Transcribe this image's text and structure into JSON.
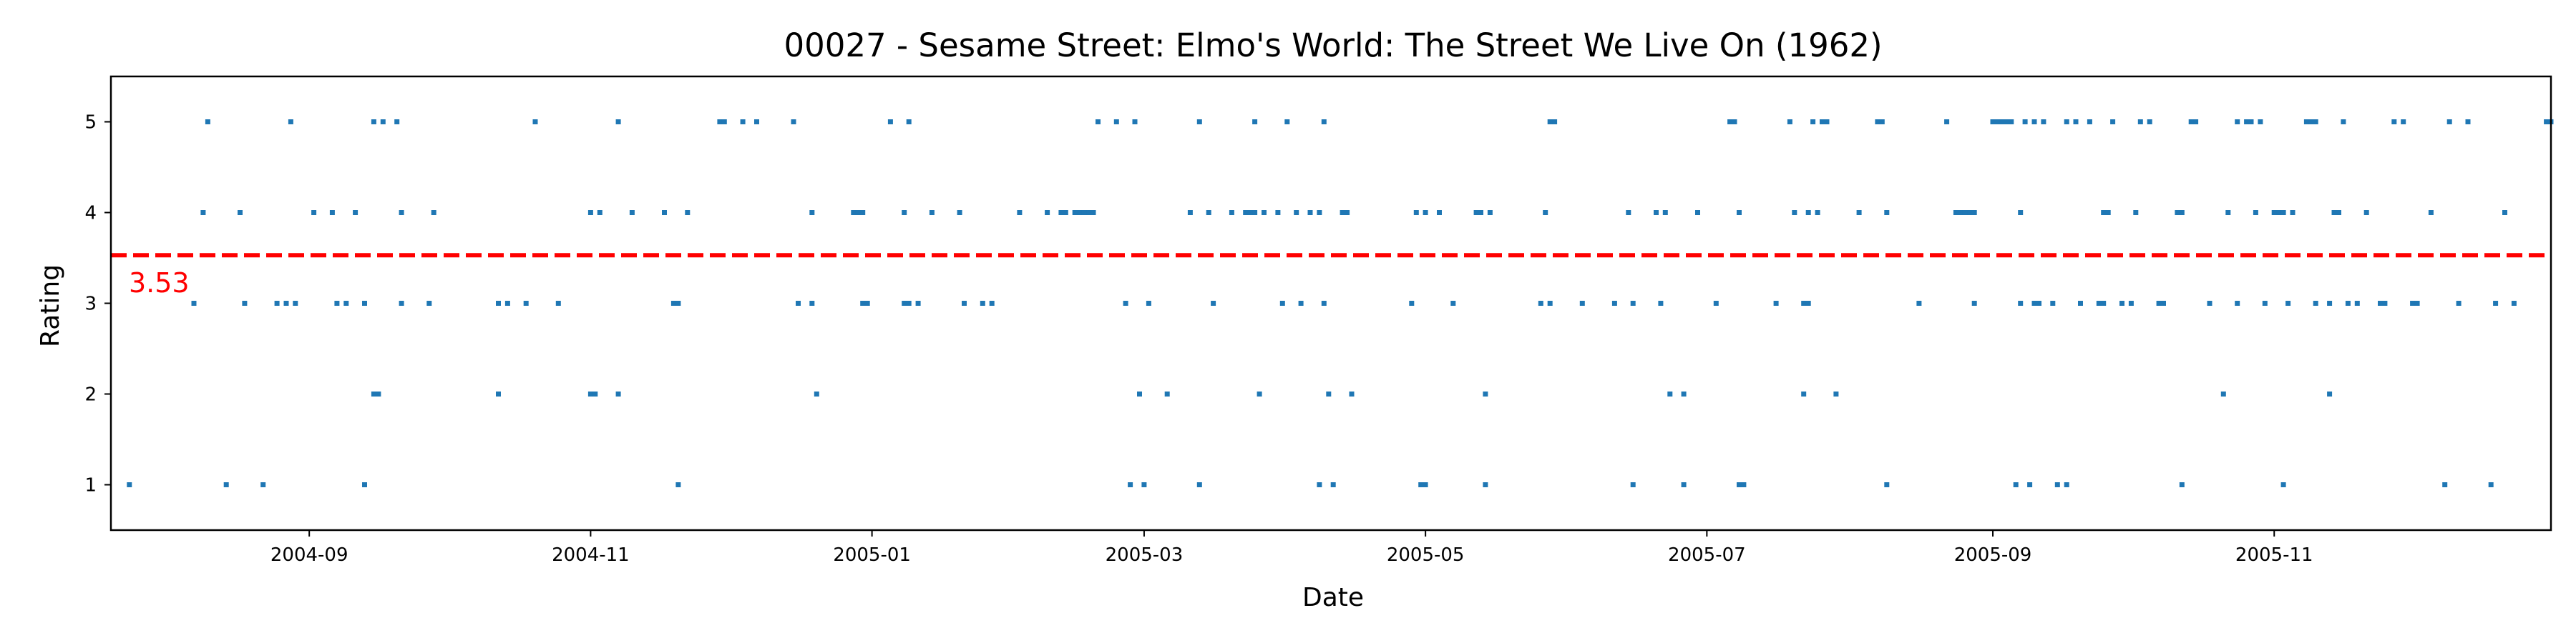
{
  "chart_data": {
    "type": "scatter",
    "title": "00027 - Sesame Street: Elmo's World: The Street We Live On (1962)",
    "xlabel": "Date",
    "ylabel": "Rating",
    "x_type": "date",
    "xlim": [
      "2004-07-20",
      "2005-12-31"
    ],
    "ylim": [
      0.5,
      5.5
    ],
    "x_ticks": [
      "2004-09",
      "2004-11",
      "2005-01",
      "2005-03",
      "2005-05",
      "2005-07",
      "2005-09",
      "2005-11"
    ],
    "y_ticks": [
      1,
      2,
      3,
      4,
      5
    ],
    "grid": false,
    "mean_line": {
      "value": 3.53,
      "label": "3.53",
      "color": "#ff0000",
      "style": "dashed"
    },
    "marker_color": "#1f77b4",
    "series": [
      {
        "points": [
          [
            "2004-07-24",
            1
          ],
          [
            "2004-08-07",
            3
          ],
          [
            "2004-08-09",
            4
          ],
          [
            "2004-08-10",
            5
          ],
          [
            "2004-08-14",
            1
          ],
          [
            "2004-08-17",
            4
          ],
          [
            "2004-08-18",
            3
          ],
          [
            "2004-08-22",
            1
          ],
          [
            "2004-08-25",
            3
          ],
          [
            "2004-08-27",
            3
          ],
          [
            "2004-08-28",
            5
          ],
          [
            "2004-08-29",
            3
          ],
          [
            "2004-09-02",
            4
          ],
          [
            "2004-09-06",
            4
          ],
          [
            "2004-09-07",
            3
          ],
          [
            "2004-09-09",
            3
          ],
          [
            "2004-09-11",
            4
          ],
          [
            "2004-09-13",
            3
          ],
          [
            "2004-09-13",
            1
          ],
          [
            "2004-09-15",
            5
          ],
          [
            "2004-09-15",
            2
          ],
          [
            "2004-09-16",
            2
          ],
          [
            "2004-09-17",
            5
          ],
          [
            "2004-09-20",
            5
          ],
          [
            "2004-09-21",
            4
          ],
          [
            "2004-09-21",
            3
          ],
          [
            "2004-09-27",
            3
          ],
          [
            "2004-09-28",
            4
          ],
          [
            "2004-10-12",
            3
          ],
          [
            "2004-10-12",
            2
          ],
          [
            "2004-10-14",
            3
          ],
          [
            "2004-10-18",
            3
          ],
          [
            "2004-10-20",
            5
          ],
          [
            "2004-10-25",
            3
          ],
          [
            "2005-11-01",
            4
          ],
          [
            "2004-11-01",
            4
          ],
          [
            "2004-11-01",
            2
          ],
          [
            "2004-11-02",
            2
          ],
          [
            "2004-11-03",
            4
          ],
          [
            "2004-11-07",
            5
          ],
          [
            "2004-11-07",
            2
          ],
          [
            "2004-11-10",
            4
          ],
          [
            "2004-11-17",
            4
          ],
          [
            "2004-11-19",
            3
          ],
          [
            "2004-11-20",
            3
          ],
          [
            "2004-11-20",
            1
          ],
          [
            "2004-11-22",
            4
          ],
          [
            "2004-11-29",
            5
          ],
          [
            "2004-11-30",
            5
          ],
          [
            "2004-12-04",
            5
          ],
          [
            "2004-12-07",
            5
          ],
          [
            "2004-12-15",
            5
          ],
          [
            "2004-12-16",
            3
          ],
          [
            "2004-12-19",
            4
          ],
          [
            "2004-12-19",
            3
          ],
          [
            "2004-12-20",
            2
          ],
          [
            "2004-12-28",
            4
          ],
          [
            "2004-12-29",
            4
          ],
          [
            "2004-12-30",
            4
          ],
          [
            "2004-12-30",
            3
          ],
          [
            "2004-12-31",
            3
          ],
          [
            "2005-01-05",
            5
          ],
          [
            "2005-01-08",
            4
          ],
          [
            "2005-01-08",
            3
          ],
          [
            "2005-01-09",
            3
          ],
          [
            "2005-01-09",
            5
          ],
          [
            "2005-01-11",
            3
          ],
          [
            "2005-01-14",
            4
          ],
          [
            "2005-01-20",
            4
          ],
          [
            "2005-01-21",
            3
          ],
          [
            "2005-01-25",
            3
          ],
          [
            "2005-01-27",
            3
          ],
          [
            "2005-02-02",
            4
          ],
          [
            "2005-02-08",
            4
          ],
          [
            "2005-02-11",
            4
          ],
          [
            "2005-02-12",
            4
          ],
          [
            "2005-02-14",
            4
          ],
          [
            "2005-02-15",
            4
          ],
          [
            "2005-02-16",
            4
          ],
          [
            "2005-02-17",
            4
          ],
          [
            "2005-02-18",
            4
          ],
          [
            "2005-02-19",
            5
          ],
          [
            "2005-02-23",
            5
          ],
          [
            "2005-02-25",
            3
          ],
          [
            "2005-02-26",
            1
          ],
          [
            "2005-02-27",
            5
          ],
          [
            "2005-02-28",
            2
          ],
          [
            "2005-03-01",
            1
          ],
          [
            "2005-03-02",
            3
          ],
          [
            "2005-03-06",
            2
          ],
          [
            "2005-03-11",
            4
          ],
          [
            "2005-03-13",
            5
          ],
          [
            "2005-03-13",
            1
          ],
          [
            "2005-03-15",
            4
          ],
          [
            "2005-03-16",
            3
          ],
          [
            "2005-03-20",
            4
          ],
          [
            "2005-03-23",
            4
          ],
          [
            "2005-03-24",
            4
          ],
          [
            "2005-03-25",
            4
          ],
          [
            "2005-03-25",
            5
          ],
          [
            "2005-03-26",
            2
          ],
          [
            "2005-03-27",
            4
          ],
          [
            "2005-03-30",
            4
          ],
          [
            "2005-03-31",
            3
          ],
          [
            "2005-04-01",
            5
          ],
          [
            "2005-04-03",
            4
          ],
          [
            "2005-04-04",
            3
          ],
          [
            "2005-04-06",
            4
          ],
          [
            "2005-04-08",
            4
          ],
          [
            "2005-04-08",
            1
          ],
          [
            "2005-04-09",
            3
          ],
          [
            "2005-04-09",
            5
          ],
          [
            "2005-04-10",
            2
          ],
          [
            "2005-04-11",
            1
          ],
          [
            "2005-04-13",
            4
          ],
          [
            "2005-04-14",
            4
          ],
          [
            "2005-04-15",
            2
          ],
          [
            "2005-04-28",
            3
          ],
          [
            "2005-04-29",
            4
          ],
          [
            "2005-04-30",
            1
          ],
          [
            "2005-05-01",
            4
          ],
          [
            "2005-05-01",
            1
          ],
          [
            "2005-05-04",
            4
          ],
          [
            "2005-05-07",
            3
          ],
          [
            "2005-05-12",
            4
          ],
          [
            "2005-05-13",
            4
          ],
          [
            "2005-05-14",
            2
          ],
          [
            "2005-05-14",
            1
          ],
          [
            "2005-05-15",
            4
          ],
          [
            "2005-05-26",
            3
          ],
          [
            "2005-05-27",
            4
          ],
          [
            "2005-05-28",
            5
          ],
          [
            "2005-05-28",
            3
          ],
          [
            "2005-05-29",
            5
          ],
          [
            "2005-06-04",
            3
          ],
          [
            "2005-06-11",
            3
          ],
          [
            "2005-06-14",
            4
          ],
          [
            "2005-06-15",
            3
          ],
          [
            "2005-06-15",
            1
          ],
          [
            "2005-06-20",
            4
          ],
          [
            "2005-06-21",
            3
          ],
          [
            "2005-06-22",
            4
          ],
          [
            "2005-06-23",
            2
          ],
          [
            "2005-06-26",
            2
          ],
          [
            "2005-06-26",
            1
          ],
          [
            "2005-06-29",
            4
          ],
          [
            "2005-07-03",
            3
          ],
          [
            "2005-07-06",
            5
          ],
          [
            "2005-07-07",
            5
          ],
          [
            "2005-07-08",
            4
          ],
          [
            "2005-07-08",
            1
          ],
          [
            "2005-07-09",
            1
          ],
          [
            "2005-07-16",
            3
          ],
          [
            "2005-07-19",
            5
          ],
          [
            "2005-07-20",
            4
          ],
          [
            "2005-07-22",
            3
          ],
          [
            "2005-07-22",
            2
          ],
          [
            "2005-07-23",
            3
          ],
          [
            "2005-07-23",
            4
          ],
          [
            "2005-07-24",
            5
          ],
          [
            "2005-07-25",
            4
          ],
          [
            "2005-07-26",
            5
          ],
          [
            "2005-07-27",
            5
          ],
          [
            "2005-07-29",
            2
          ],
          [
            "2005-08-03",
            4
          ],
          [
            "2005-08-07",
            5
          ],
          [
            "2005-08-08",
            5
          ],
          [
            "2005-08-09",
            4
          ],
          [
            "2005-08-09",
            1
          ],
          [
            "2005-08-16",
            3
          ],
          [
            "2005-08-22",
            5
          ],
          [
            "2005-08-24",
            4
          ],
          [
            "2005-08-25",
            4
          ],
          [
            "2005-08-26",
            4
          ],
          [
            "2005-08-27",
            4
          ],
          [
            "2005-08-28",
            4
          ],
          [
            "2005-08-28",
            3
          ],
          [
            "2005-09-01",
            5
          ],
          [
            "2005-09-02",
            5
          ],
          [
            "2005-09-03",
            5
          ],
          [
            "2005-09-04",
            5
          ],
          [
            "2005-09-05",
            5
          ],
          [
            "2005-09-06",
            1
          ],
          [
            "2005-09-07",
            4
          ],
          [
            "2005-09-07",
            3
          ],
          [
            "2005-09-08",
            5
          ],
          [
            "2005-09-09",
            1
          ],
          [
            "2005-09-10",
            5
          ],
          [
            "2005-09-10",
            3
          ],
          [
            "2005-09-11",
            3
          ],
          [
            "2005-09-12",
            5
          ],
          [
            "2005-09-14",
            3
          ],
          [
            "2005-09-15",
            1
          ],
          [
            "2005-09-17",
            5
          ],
          [
            "2005-09-17",
            1
          ],
          [
            "2005-09-19",
            5
          ],
          [
            "2005-09-20",
            3
          ],
          [
            "2005-09-22",
            5
          ],
          [
            "2005-09-24",
            3
          ],
          [
            "2005-09-25",
            3
          ],
          [
            "2005-09-25",
            4
          ],
          [
            "2005-09-26",
            4
          ],
          [
            "2005-09-27",
            5
          ],
          [
            "2005-09-29",
            3
          ],
          [
            "2005-10-01",
            3
          ],
          [
            "2005-10-02",
            4
          ],
          [
            "2005-10-03",
            5
          ],
          [
            "2005-10-05",
            5
          ],
          [
            "2005-10-07",
            3
          ],
          [
            "2005-10-08",
            3
          ],
          [
            "2005-10-11",
            4
          ],
          [
            "2005-10-12",
            4
          ],
          [
            "2005-10-12",
            1
          ],
          [
            "2005-10-14",
            5
          ],
          [
            "2005-10-15",
            5
          ],
          [
            "2005-10-18",
            3
          ],
          [
            "2005-10-21",
            2
          ],
          [
            "2005-10-22",
            4
          ],
          [
            "2005-10-24",
            5
          ],
          [
            "2005-10-24",
            3
          ],
          [
            "2005-10-26",
            5
          ],
          [
            "2005-10-27",
            5
          ],
          [
            "2005-10-28",
            4
          ],
          [
            "2005-10-29",
            5
          ],
          [
            "2005-10-30",
            3
          ],
          [
            "2005-11-02",
            4
          ],
          [
            "2005-11-03",
            4
          ],
          [
            "2005-11-03",
            1
          ],
          [
            "2005-11-04",
            3
          ],
          [
            "2005-11-05",
            4
          ],
          [
            "2005-11-08",
            5
          ],
          [
            "2005-11-09",
            5
          ],
          [
            "2005-11-10",
            5
          ],
          [
            "2005-11-10",
            3
          ],
          [
            "2005-11-13",
            2
          ],
          [
            "2005-11-13",
            3
          ],
          [
            "2005-11-14",
            4
          ],
          [
            "2005-11-15",
            4
          ],
          [
            "2005-11-16",
            5
          ],
          [
            "2005-11-17",
            3
          ],
          [
            "2005-11-19",
            3
          ],
          [
            "2005-11-21",
            4
          ],
          [
            "2005-11-24",
            3
          ],
          [
            "2005-11-25",
            3
          ],
          [
            "2005-11-27",
            5
          ],
          [
            "2005-11-29",
            5
          ],
          [
            "2005-12-01",
            3
          ],
          [
            "2005-12-02",
            3
          ],
          [
            "2005-12-05",
            4
          ],
          [
            "2005-12-08",
            1
          ],
          [
            "2005-12-09",
            5
          ],
          [
            "2005-12-11",
            3
          ],
          [
            "2005-12-13",
            5
          ],
          [
            "2005-12-18",
            1
          ],
          [
            "2005-12-19",
            3
          ],
          [
            "2005-12-21",
            4
          ],
          [
            "2005-12-23",
            3
          ],
          [
            "2005-12-30",
            5
          ],
          [
            "2005-12-31",
            5
          ]
        ]
      }
    ]
  }
}
